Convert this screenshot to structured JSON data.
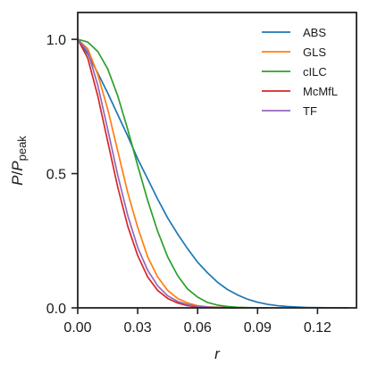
{
  "chart_data": {
    "type": "line",
    "xlabel": "r",
    "ylabel_main": "P",
    "ylabel_sep": "/",
    "ylabel_den": "P",
    "ylabel_sub": "peak",
    "xlim": [
      0.0,
      0.1395
    ],
    "ylim": [
      0.0,
      1.1
    ],
    "xticks": [
      {
        "value": 0.0,
        "label": "0.00"
      },
      {
        "value": 0.03,
        "label": "0.03"
      },
      {
        "value": 0.06,
        "label": "0.06"
      },
      {
        "value": 0.09,
        "label": "0.09"
      },
      {
        "value": 0.12,
        "label": "0.12"
      }
    ],
    "yticks": [
      {
        "value": 0.0,
        "label": "0.0"
      },
      {
        "value": 0.5,
        "label": "0.5"
      },
      {
        "value": 1.0,
        "label": "1.0"
      }
    ],
    "legend_position": "top-right",
    "series": [
      {
        "name": "ABS",
        "color": "#1f77b4",
        "x": [
          0.0,
          0.005,
          0.01,
          0.015,
          0.02,
          0.025,
          0.03,
          0.035,
          0.04,
          0.045,
          0.05,
          0.055,
          0.06,
          0.065,
          0.07,
          0.075,
          0.08,
          0.085,
          0.09,
          0.095,
          0.1,
          0.105,
          0.11,
          0.115,
          0.12,
          0.125,
          0.13,
          0.135
        ],
        "y": [
          1.0,
          0.945,
          0.875,
          0.8,
          0.72,
          0.64,
          0.555,
          0.48,
          0.405,
          0.335,
          0.275,
          0.22,
          0.17,
          0.13,
          0.095,
          0.068,
          0.048,
          0.032,
          0.021,
          0.013,
          0.008,
          0.005,
          0.003,
          0.0015,
          0.0008,
          0.0004,
          0.0002,
          0.0001
        ]
      },
      {
        "name": "GLS",
        "color": "#ff7f0e",
        "x": [
          0.0,
          0.005,
          0.01,
          0.015,
          0.02,
          0.025,
          0.03,
          0.035,
          0.04,
          0.045,
          0.05,
          0.055,
          0.06,
          0.065,
          0.07,
          0.075,
          0.08,
          0.085
        ],
        "y": [
          1.0,
          0.965,
          0.87,
          0.74,
          0.585,
          0.43,
          0.3,
          0.19,
          0.115,
          0.065,
          0.035,
          0.018,
          0.008,
          0.004,
          0.002,
          0.001,
          0.0004,
          0.0001
        ]
      },
      {
        "name": "cILC",
        "color": "#2ca02c",
        "x": [
          0.0,
          0.005,
          0.01,
          0.015,
          0.02,
          0.025,
          0.03,
          0.035,
          0.04,
          0.045,
          0.05,
          0.055,
          0.06,
          0.065,
          0.07,
          0.075,
          0.08,
          0.085,
          0.09,
          0.095
        ],
        "y": [
          1.0,
          0.99,
          0.955,
          0.89,
          0.79,
          0.665,
          0.53,
          0.4,
          0.285,
          0.19,
          0.12,
          0.07,
          0.04,
          0.02,
          0.01,
          0.005,
          0.002,
          0.001,
          0.0004,
          0.0001
        ]
      },
      {
        "name": "McMfL",
        "color": "#d62728",
        "x": [
          0.0,
          0.005,
          0.01,
          0.015,
          0.02,
          0.025,
          0.03,
          0.035,
          0.04,
          0.045,
          0.05,
          0.055,
          0.06,
          0.065,
          0.07,
          0.075,
          0.08
        ],
        "y": [
          1.0,
          0.93,
          0.79,
          0.62,
          0.45,
          0.305,
          0.195,
          0.115,
          0.065,
          0.035,
          0.018,
          0.008,
          0.004,
          0.002,
          0.001,
          0.0004,
          0.0001
        ]
      },
      {
        "name": "TF",
        "color": "#9467bd",
        "x": [
          0.0,
          0.005,
          0.01,
          0.015,
          0.02,
          0.025,
          0.03,
          0.035,
          0.04,
          0.045,
          0.05,
          0.055,
          0.06,
          0.065,
          0.07,
          0.075,
          0.08
        ],
        "y": [
          1.0,
          0.955,
          0.83,
          0.665,
          0.495,
          0.345,
          0.225,
          0.14,
          0.082,
          0.045,
          0.024,
          0.012,
          0.006,
          0.003,
          0.0013,
          0.0005,
          0.0002
        ]
      }
    ]
  }
}
